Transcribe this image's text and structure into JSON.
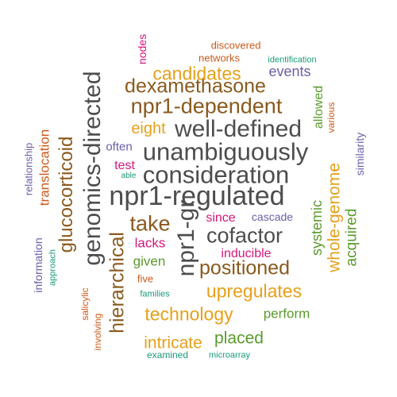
{
  "colors": {
    "dark_gray": "#4d4d4d",
    "brown": "#8a5a1e",
    "orange": "#e6a01a",
    "green": "#5a9a2a",
    "magenta": "#d6157a",
    "purple": "#6a5fa8",
    "teal": "#1a9a7a",
    "rust": "#cc5a1a"
  },
  "words": [
    {
      "text": "npr1-regulated",
      "color": "dark_gray",
      "size": 34,
      "rotated": false
    },
    {
      "text": "consideration",
      "color": "dark_gray",
      "size": 31,
      "rotated": false
    },
    {
      "text": "unambiguously",
      "color": "dark_gray",
      "size": 31,
      "rotated": false
    },
    {
      "text": "well-defined",
      "color": "dark_gray",
      "size": 30,
      "rotated": false
    },
    {
      "text": "genomics-directed",
      "color": "dark_gray",
      "size": 30,
      "rotated": true
    },
    {
      "text": "npr1-gr",
      "color": "dark_gray",
      "size": 30,
      "rotated": true
    },
    {
      "text": "npr1-dependent",
      "color": "brown",
      "size": 27,
      "rotated": false
    },
    {
      "text": "dexamethasone",
      "color": "brown",
      "size": 25,
      "rotated": false
    },
    {
      "text": "cofactor",
      "color": "dark_gray",
      "size": 27,
      "rotated": false
    },
    {
      "text": "take",
      "color": "brown",
      "size": 27,
      "rotated": false
    },
    {
      "text": "positioned",
      "color": "brown",
      "size": 25,
      "rotated": false
    },
    {
      "text": "hierarchical",
      "color": "brown",
      "size": 25,
      "rotated": true
    },
    {
      "text": "glucocorticoid",
      "color": "brown",
      "size": 24,
      "rotated": true
    },
    {
      "text": "candidates",
      "color": "orange",
      "size": 23,
      "rotated": false
    },
    {
      "text": "technology",
      "color": "orange",
      "size": 23,
      "rotated": false
    },
    {
      "text": "upregulates",
      "color": "orange",
      "size": 23,
      "rotated": false
    },
    {
      "text": "intricate",
      "color": "orange",
      "size": 21,
      "rotated": false
    },
    {
      "text": "whole-genome",
      "color": "orange",
      "size": 21,
      "rotated": true
    },
    {
      "text": "placed",
      "color": "green",
      "size": 21,
      "rotated": false
    },
    {
      "text": "eight",
      "color": "orange",
      "size": 20,
      "rotated": false
    },
    {
      "text": "events",
      "color": "purple",
      "size": 18,
      "rotated": false
    },
    {
      "text": "acquired",
      "color": "green",
      "size": 19,
      "rotated": true
    },
    {
      "text": "systemic",
      "color": "green",
      "size": 18,
      "rotated": true
    },
    {
      "text": "allowed",
      "color": "green",
      "size": 16,
      "rotated": true
    },
    {
      "text": "perform",
      "color": "green",
      "size": 17,
      "rotated": false
    },
    {
      "text": "given",
      "color": "green",
      "size": 17,
      "rotated": false
    },
    {
      "text": "translocation",
      "color": "rust",
      "size": 17,
      "rotated": true
    },
    {
      "text": "lacks",
      "color": "magenta",
      "size": 17,
      "rotated": false
    },
    {
      "text": "since",
      "color": "magenta",
      "size": 16,
      "rotated": false
    },
    {
      "text": "inducible",
      "color": "magenta",
      "size": 16,
      "rotated": false
    },
    {
      "text": "test",
      "color": "magenta",
      "size": 16,
      "rotated": false
    },
    {
      "text": "cascade",
      "color": "purple",
      "size": 14,
      "rotated": false
    },
    {
      "text": "often",
      "color": "purple",
      "size": 15,
      "rotated": false
    },
    {
      "text": "similarity",
      "color": "purple",
      "size": 14,
      "rotated": true
    },
    {
      "text": "information",
      "color": "purple",
      "size": 14,
      "rotated": true
    },
    {
      "text": "relationship",
      "color": "purple",
      "size": 13,
      "rotated": true
    },
    {
      "text": "nodes",
      "color": "magenta",
      "size": 14,
      "rotated": true
    },
    {
      "text": "discovered",
      "color": "rust",
      "size": 13,
      "rotated": false
    },
    {
      "text": "networks",
      "color": "rust",
      "size": 13,
      "rotated": false
    },
    {
      "text": "various",
      "color": "rust",
      "size": 12,
      "rotated": true
    },
    {
      "text": "five",
      "color": "rust",
      "size": 13,
      "rotated": false
    },
    {
      "text": "salicylic",
      "color": "rust",
      "size": 12,
      "rotated": true
    },
    {
      "text": "involving",
      "color": "rust",
      "size": 12,
      "rotated": true
    },
    {
      "text": "identification",
      "color": "teal",
      "size": 11,
      "rotated": false
    },
    {
      "text": "families",
      "color": "teal",
      "size": 11,
      "rotated": false
    },
    {
      "text": "examined",
      "color": "teal",
      "size": 12,
      "rotated": false
    },
    {
      "text": "microarray",
      "color": "teal",
      "size": 11,
      "rotated": false
    },
    {
      "text": "approach",
      "color": "teal",
      "size": 11,
      "rotated": true
    },
    {
      "text": "able",
      "color": "teal",
      "size": 10,
      "rotated": false
    }
  ]
}
